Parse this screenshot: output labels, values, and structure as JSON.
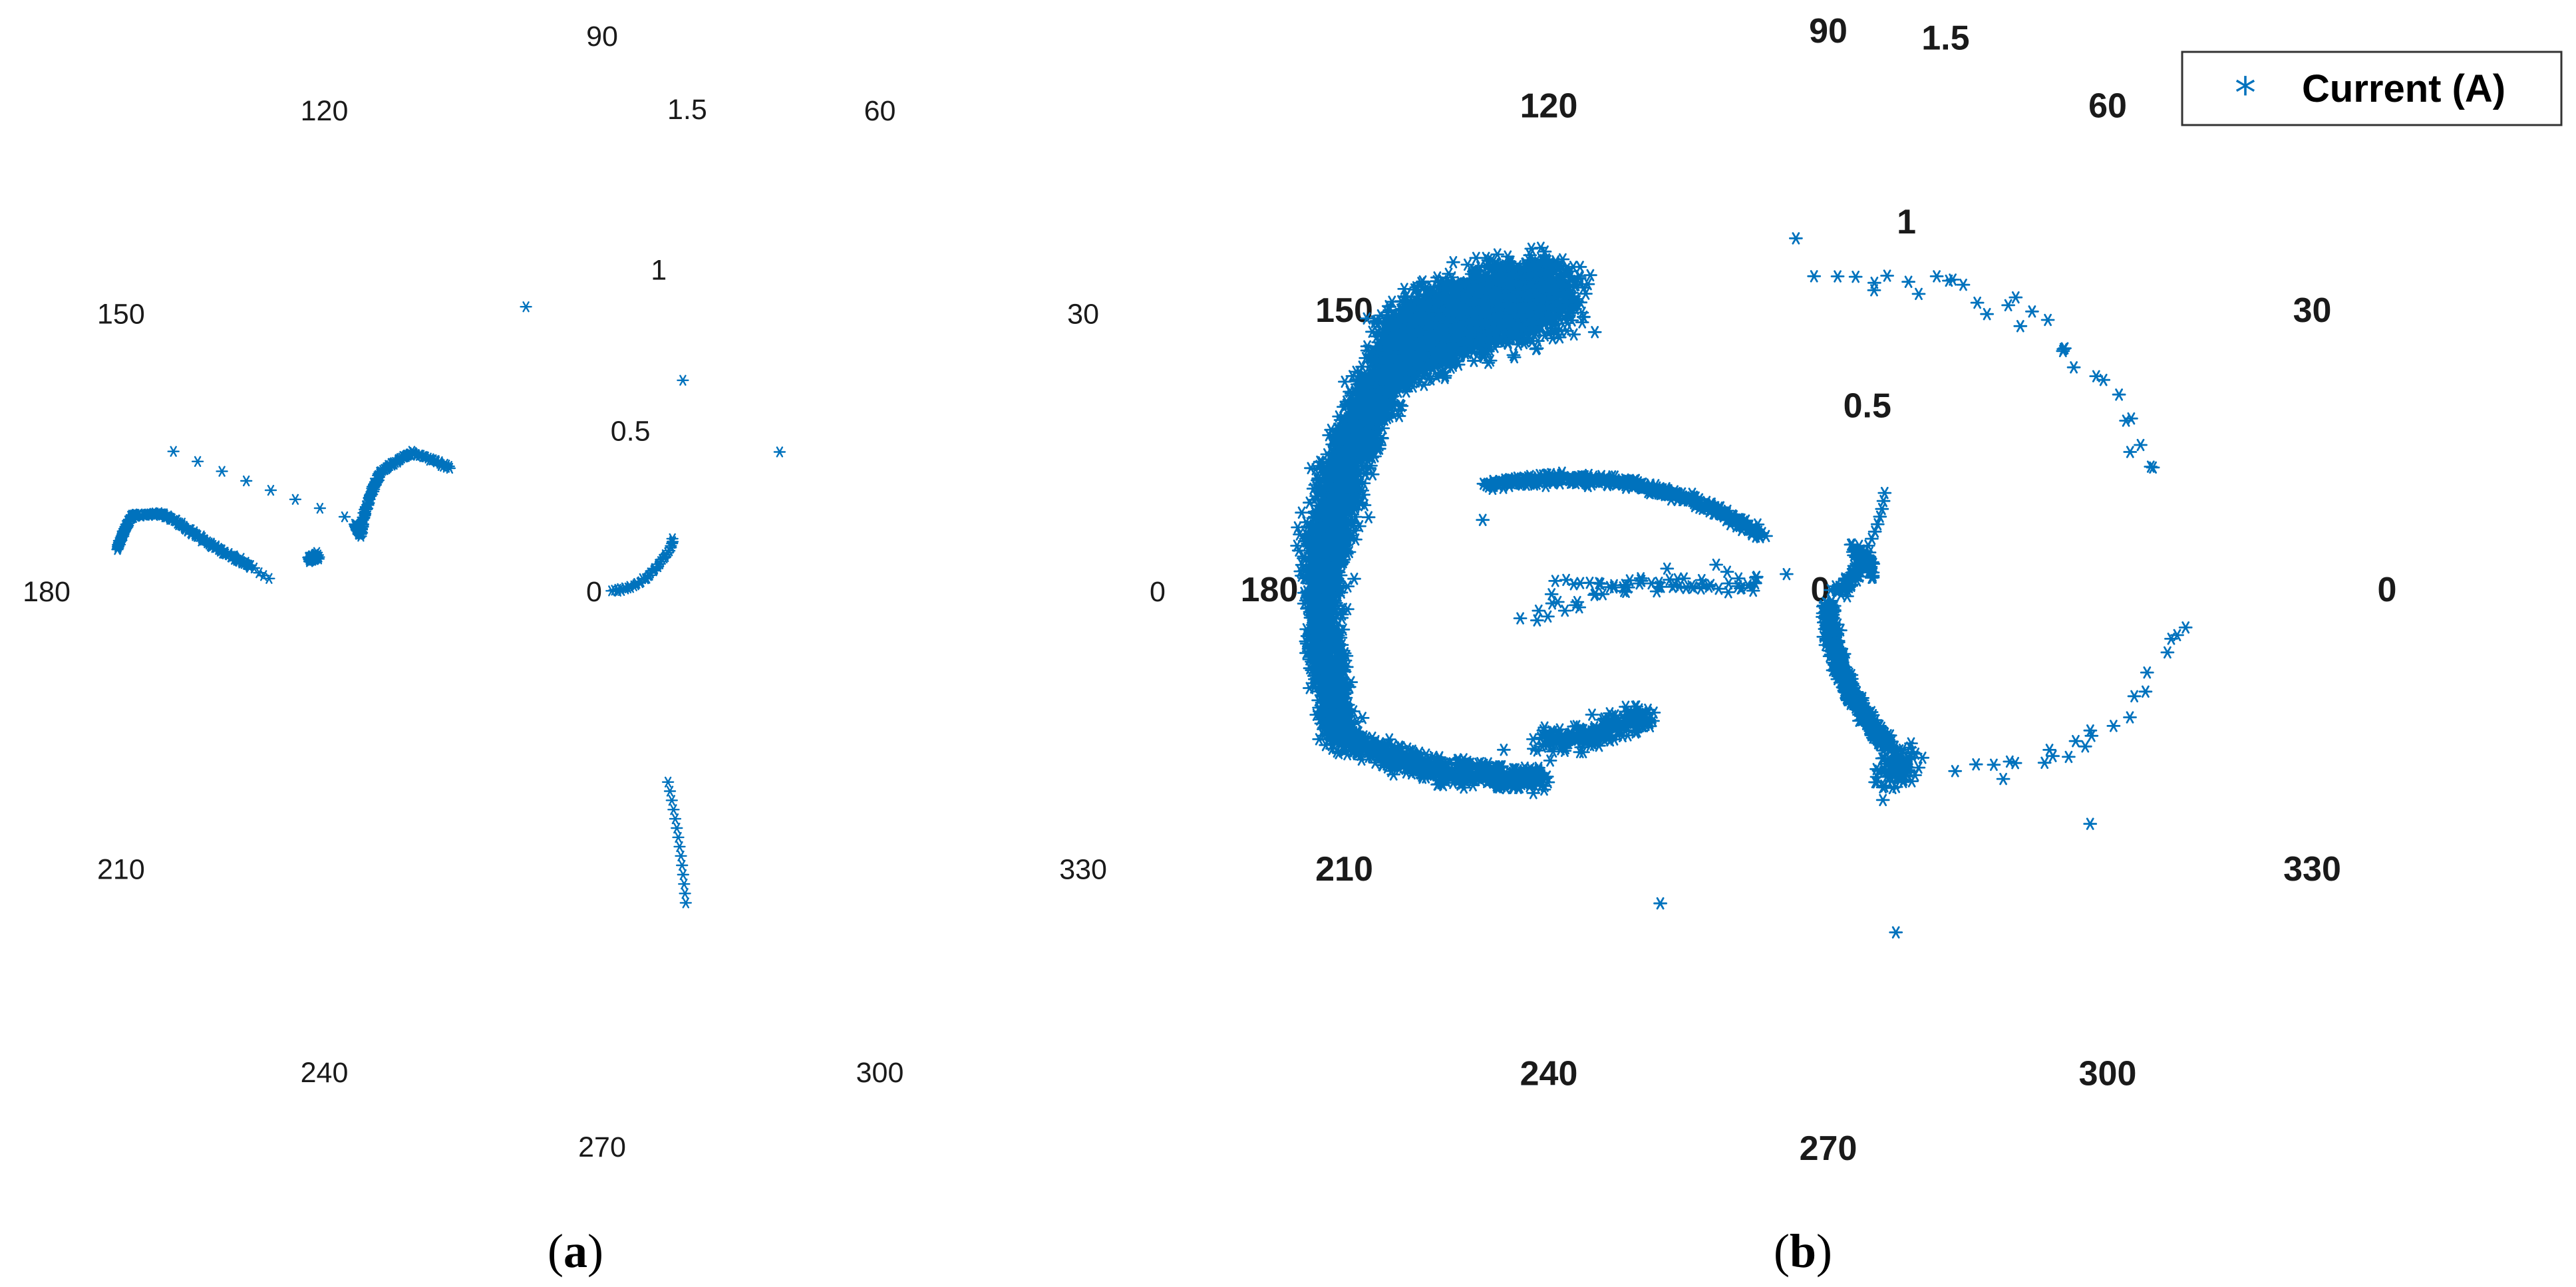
{
  "chart_data": [
    {
      "type": "scatter",
      "subtype": "polar",
      "caption_letter": "a",
      "angular_ticks": [
        "0",
        "30",
        "60",
        "90",
        "120",
        "150",
        "180",
        "210",
        "240",
        "270",
        "300",
        "330"
      ],
      "angular_tick_values": [
        0,
        30,
        60,
        90,
        120,
        150,
        180,
        210,
        240,
        270,
        300,
        330
      ],
      "radial_ticks": [
        "0",
        "0.5",
        "1",
        "1.5"
      ],
      "radial_tick_values": [
        0,
        0.5,
        1,
        1.5
      ],
      "rlim": [
        0,
        1.65
      ],
      "grid": false,
      "marker": "asterisk",
      "color": "#0072BD",
      "series": [
        {
          "name": "",
          "segments": [
            {
              "th0": 175,
              "r0": 1.49,
              "th1": 171,
              "r1": 1.46,
              "count": 55,
              "jitter": 0.004
            },
            {
              "th0": 171,
              "r0": 1.46,
              "th1": 170,
              "r1": 1.36,
              "count": 40,
              "jitter": 0.004
            },
            {
              "th0": 170,
              "r0": 1.36,
              "th1": 176,
              "r1": 1.08,
              "count": 110,
              "jitter": 0.005
            },
            {
              "th0": 174,
              "r0": 0.9,
              "th1": 173,
              "r1": 0.88,
              "count": 50,
              "jitter": 0.008
            },
            {
              "th0": 165,
              "r0": 0.78,
              "th1": 167,
              "r1": 0.76,
              "count": 45,
              "jitter": 0.004
            },
            {
              "th0": 167,
              "r0": 0.76,
              "th1": 152,
              "r1": 0.77,
              "count": 60,
              "jitter": 0.004
            },
            {
              "th0": 152,
              "r0": 0.77,
              "th1": 144,
              "r1": 0.72,
              "count": 45,
              "jitter": 0.004
            },
            {
              "th0": 144,
              "r0": 0.72,
              "th1": 141,
              "r1": 0.6,
              "count": 30,
              "jitter": 0.004
            },
            {
              "th0": 162,
              "r0": 1.38,
              "th1": 164,
              "r1": 0.82,
              "count": 8,
              "jitter": 0
            },
            {
              "th0": 178,
              "r0": 1.02,
              "th1": 176,
              "r1": 1.08,
              "count": 5,
              "jitter": 0.006
            },
            {
              "th0": 0,
              "r0": 0.03,
              "th1": 36,
              "r1": 0.27,
              "count": 40,
              "jitter": 0.004
            },
            {
              "th0": 289,
              "r0": 0.62,
              "th1": 285,
              "r1": 0.99,
              "count": 14,
              "jitter": 0
            }
          ],
          "points": [
            [
              105,
              0.9
            ],
            [
              69,
              0.69
            ],
            [
              38,
              0.69
            ]
          ]
        }
      ]
    },
    {
      "type": "scatter",
      "subtype": "polar",
      "caption_letter": "b",
      "angular_ticks": [
        "0",
        "30",
        "60",
        "90",
        "120",
        "150",
        "180",
        "210",
        "240",
        "270",
        "300",
        "330"
      ],
      "angular_tick_values": [
        0,
        30,
        60,
        90,
        120,
        150,
        180,
        210,
        240,
        270,
        300,
        330
      ],
      "radial_ticks": [
        "0",
        "0.5",
        "1",
        "1.5"
      ],
      "radial_tick_values": [
        0,
        0.5,
        1,
        1.5
      ],
      "rlim": [
        0,
        1.45
      ],
      "grid": false,
      "marker": "asterisk",
      "color": "#0072BD",
      "legend_position": "top-right",
      "series": [
        {
          "name": "Current (A)",
          "segments": [
            {
              "th0": 133,
              "r0": 1.08,
              "th1": 150,
              "r1": 1.3,
              "count": 3200,
              "jitter": 0.085
            },
            {
              "th0": 150,
              "r0": 1.3,
              "th1": 178,
              "r1": 1.34,
              "count": 1400,
              "jitter": 0.055
            },
            {
              "th0": 178,
              "r0": 1.34,
              "th1": 197,
              "r1": 1.35,
              "count": 900,
              "jitter": 0.04
            },
            {
              "th0": 197,
              "r0": 1.35,
              "th1": 213,
              "r1": 0.91,
              "count": 500,
              "jitter": 0.03
            },
            {
              "th0": 208,
              "r0": 0.87,
              "th1": 215,
              "r1": 0.57,
              "count": 200,
              "jitter": 0.03
            },
            {
              "th0": 140,
              "r0": 0.23,
              "th1": 163,
              "r1": 0.95,
              "count": 400,
              "jitter": 0.012
            },
            {
              "th0": 171,
              "r0": 0.15,
              "th1": 185,
              "r1": 0.8,
              "count": 45,
              "jitter": 0.03
            },
            {
              "th0": 179,
              "r0": 0.2,
              "th1": 178,
              "r1": 0.72,
              "count": 25,
              "jitter": 0.01
            },
            {
              "th0": 270,
              "r0": 0.04,
              "th1": 292,
              "r1": 0.45,
              "count": 500,
              "jitter": 0.015
            },
            {
              "th0": 295,
              "r0": 0.49,
              "th1": 288,
              "r1": 0.52,
              "count": 100,
              "jitter": 0.04
            },
            {
              "th0": 0,
              "r0": 0.02,
              "th1": 60,
              "r1": 0.14,
              "count": 60,
              "jitter": 0.015
            },
            {
              "th0": 20,
              "r0": 0.12,
              "th1": 45,
              "r1": 0.14,
              "count": 40,
              "jitter": 0.01
            },
            {
              "th0": 45,
              "r0": 0.12,
              "th1": 60,
              "r1": 0.3,
              "count": 10,
              "jitter": 0
            },
            {
              "th0": 91,
              "r0": 0.81,
              "th1": 68,
              "r1": 0.87,
              "count": 10,
              "jitter": 0.03
            },
            {
              "th0": 68,
              "r0": 0.87,
              "th1": 45,
              "r1": 0.9,
              "count": 10,
              "jitter": 0.03
            },
            {
              "th0": 45,
              "r0": 0.9,
              "th1": 20,
              "r1": 0.92,
              "count": 10,
              "jitter": 0.03
            },
            {
              "th0": 20,
              "r0": 0.92,
              "th1": 355,
              "r1": 0.95,
              "count": 10,
              "jitter": 0.03
            },
            {
              "th0": 355,
              "r0": 0.95,
              "th1": 330,
              "r1": 0.8,
              "count": 10,
              "jitter": 0.03
            },
            {
              "th0": 330,
              "r0": 0.8,
              "th1": 308,
              "r1": 0.6,
              "count": 12,
              "jitter": 0.03
            }
          ],
          "points": []
        }
      ]
    }
  ]
}
